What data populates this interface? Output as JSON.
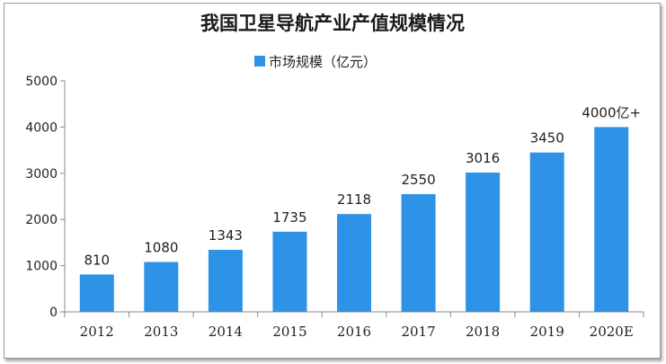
{
  "chart_data": {
    "type": "bar",
    "title": "我国卫星导航产业产值规模情况",
    "series": [
      {
        "name": "市场规模（亿元）",
        "color": "#2e93e6",
        "values": [
          810,
          1080,
          1343,
          1735,
          2118,
          2550,
          3016,
          3450,
          4000
        ]
      }
    ],
    "categories": [
      "2012",
      "2013",
      "2014",
      "2015",
      "2016",
      "2017",
      "2018",
      "2019",
      "2020E"
    ],
    "data_labels": [
      "810",
      "1080",
      "1343",
      "1735",
      "2118",
      "2550",
      "3016",
      "3450",
      "4000亿+"
    ],
    "y_ticks": [
      "0",
      "1000",
      "2000",
      "3000",
      "4000",
      "5000"
    ],
    "ylim": [
      0,
      5000
    ],
    "legend_position": "top-center",
    "grid": false
  }
}
